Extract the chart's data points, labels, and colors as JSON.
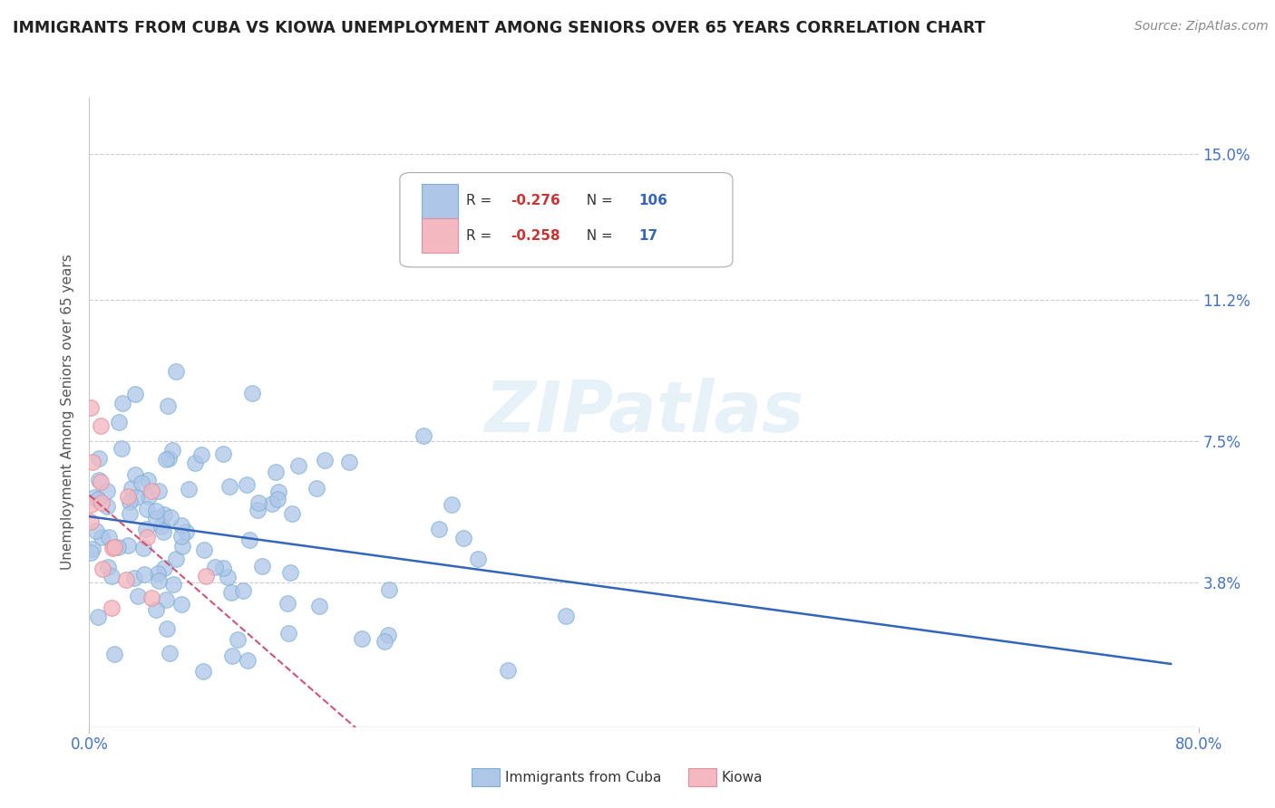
{
  "title": "IMMIGRANTS FROM CUBA VS KIOWA UNEMPLOYMENT AMONG SENIORS OVER 65 YEARS CORRELATION CHART",
  "source": "Source: ZipAtlas.com",
  "ylabel": "Unemployment Among Seniors over 65 years",
  "xlim": [
    0.0,
    0.8
  ],
  "ylim": [
    0.0,
    0.165
  ],
  "ytick_vals": [
    0.038,
    0.075,
    0.112,
    0.15
  ],
  "ytick_labels": [
    "3.8%",
    "7.5%",
    "11.2%",
    "15.0%"
  ],
  "xtick_vals": [
    0.0,
    0.8
  ],
  "xtick_labels": [
    "0.0%",
    "80.0%"
  ],
  "cuba_color": "#aec6e8",
  "cuba_edge": "#7bafd4",
  "kiowa_color": "#f4b8c1",
  "kiowa_edge": "#e090a0",
  "trend_cuba_color": "#3366bb",
  "trend_kiowa_color": "#cc5577",
  "watermark": "ZIPatlas",
  "background_color": "#ffffff",
  "grid_color": "#cccccc",
  "title_color": "#222222",
  "ylabel_color": "#555555",
  "tick_color": "#4472c4",
  "source_color": "#888888",
  "legend_R1": "-0.276",
  "legend_N1": "106",
  "legend_R2": "-0.258",
  "legend_N2": "17",
  "bottom_label1": "Immigrants from Cuba",
  "bottom_label2": "Kiowa"
}
